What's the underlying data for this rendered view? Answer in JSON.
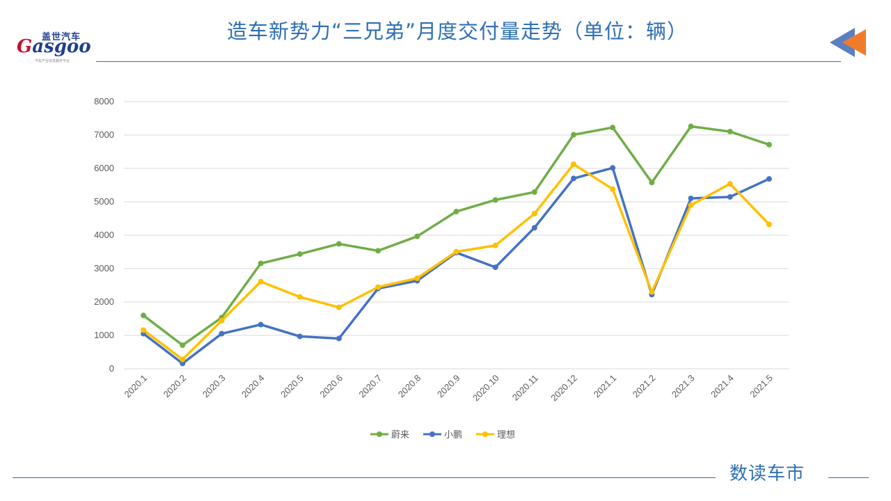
{
  "header": {
    "title": "造车新势力“三兄弟”月度交付量走势（单位：辆）",
    "logo_cn": "盖世汽车",
    "logo_en_g": "G",
    "logo_en_rest": "asgoo",
    "logo_tagline": "汽车产业信息服务平台"
  },
  "footer": {
    "brand": "数读车市"
  },
  "colors": {
    "accent": "#2f6fb5",
    "rule": "#2f6f9f",
    "arrow_blue": "#5b7fc0",
    "arrow_orange": "#f07c2a"
  },
  "chart_data": {
    "type": "line",
    "title": "造车新势力“三兄弟”月度交付量走势（单位：辆）",
    "xlabel": "",
    "ylabel": "",
    "ylim": [
      0,
      8000
    ],
    "yticks": [
      0,
      1000,
      2000,
      3000,
      4000,
      5000,
      6000,
      7000,
      8000
    ],
    "grid": true,
    "legend_position": "bottom",
    "categories": [
      "2020.1",
      "2020.2",
      "2020.3",
      "2020.4",
      "2020.5",
      "2020.6",
      "2020.7",
      "2020.8",
      "2020.9",
      "2020.10",
      "2020.11",
      "2020.12",
      "2021.1",
      "2021.2",
      "2021.3",
      "2021.4",
      "2021.5"
    ],
    "series": [
      {
        "name": "蔚来",
        "color": "#70ad47",
        "values": [
          1598,
          707,
          1533,
          3155,
          3436,
          3740,
          3533,
          3965,
          4708,
          5055,
          5291,
          7007,
          7225,
          5578,
          7257,
          7102,
          6711
        ]
      },
      {
        "name": "小鹏",
        "color": "#4472c4",
        "values": [
          1051,
          160,
          1051,
          1324,
          970,
          907,
          2404,
          2636,
          3478,
          3040,
          4224,
          5700,
          6015,
          2223,
          5102,
          5147,
          5686
        ]
      },
      {
        "name": "理想",
        "color": "#ffc000",
        "values": [
          1160,
          280,
          1440,
          2610,
          2150,
          1840,
          2445,
          2711,
          3505,
          3692,
          4646,
          6126,
          5379,
          2300,
          4900,
          5539,
          4323
        ]
      }
    ]
  }
}
